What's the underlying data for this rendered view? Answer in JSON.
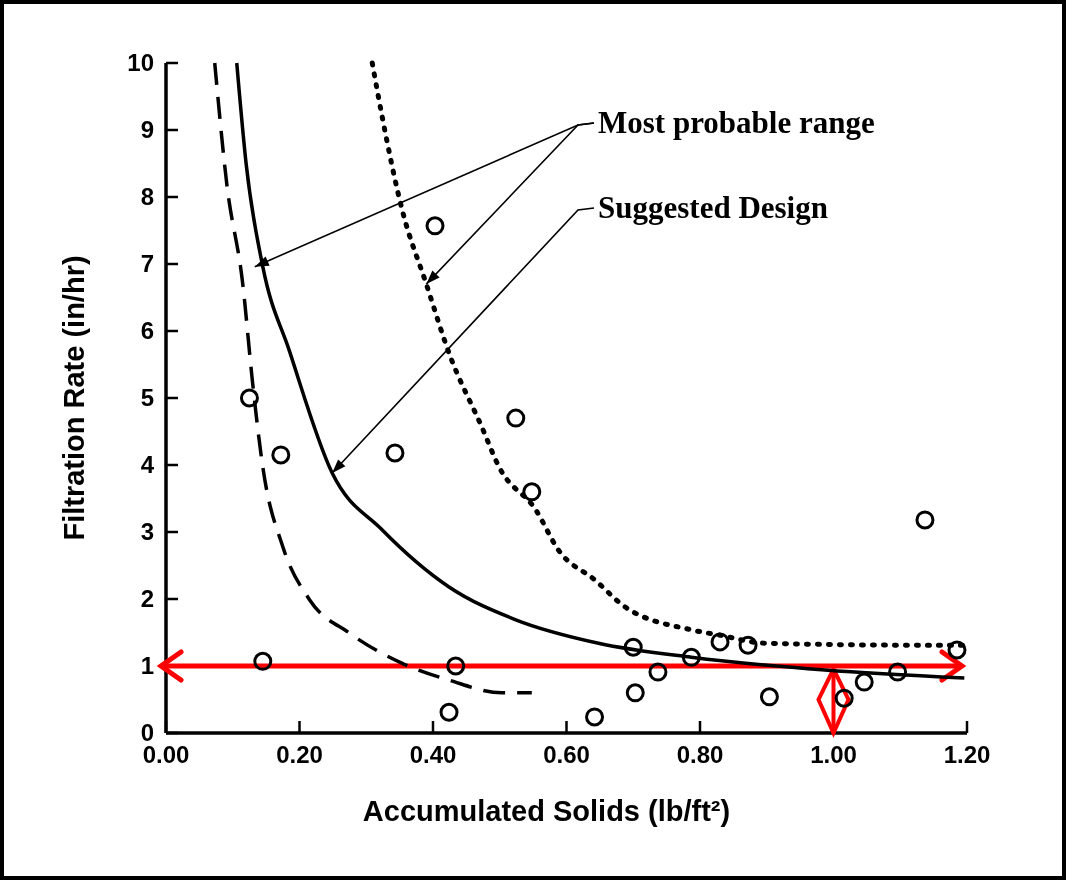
{
  "chart_data": {
    "type": "scatter",
    "xlabel": "Accumulated Solids (lb/ft²)",
    "ylabel": "Filtration Rate (in/hr)",
    "xlim": [
      0,
      1.2
    ],
    "ylim": [
      0,
      10
    ],
    "xticks": [
      {
        "value": 0,
        "label": "0.00"
      },
      {
        "value": 0.2,
        "label": "0.20"
      },
      {
        "value": 0.4,
        "label": "0.40"
      },
      {
        "value": 0.6,
        "label": "0.60"
      },
      {
        "value": 0.8,
        "label": "0.80"
      },
      {
        "value": 1,
        "label": "1.00"
      },
      {
        "value": 1.2,
        "label": "1.20"
      }
    ],
    "yticks": [
      0,
      1,
      2,
      3,
      4,
      5,
      6,
      7,
      8,
      9,
      10
    ],
    "grid": false,
    "series": [
      {
        "color": "#000000",
        "marker": "circle",
        "x": [
          0.125,
          0.172,
          0.145,
          0.343,
          0.403,
          0.434,
          0.424,
          0.524,
          0.548,
          0.642,
          0.7,
          0.703,
          0.737,
          0.787,
          0.83,
          0.872,
          0.904,
          1.016,
          1.046,
          1.096,
          1.137,
          1.185
        ],
        "values": [
          5.0,
          4.15,
          1.07,
          4.18,
          7.57,
          1.0,
          0.31,
          4.7,
          3.6,
          0.24,
          1.28,
          0.6,
          0.91,
          1.13,
          1.36,
          1.31,
          0.54,
          0.52,
          0.76,
          0.91,
          3.18,
          1.24
        ]
      },
      {
        "type": "line",
        "color": "#000000",
        "line_style": "dashed",
        "marker": "none",
        "x": [
          0.073,
          0.091,
          0.115,
          0.13,
          0.145,
          0.175,
          0.215,
          0.275,
          0.354,
          0.424,
          0.503,
          0.548
        ],
        "values": [
          10,
          8.2,
          6.7,
          5.2,
          3.97,
          2.78,
          1.99,
          1.49,
          1.04,
          0.79,
          0.6,
          0.6
        ]
      },
      {
        "type": "line",
        "color": "#000000",
        "line_style": "solid",
        "marker": "none",
        "x": [
          0.106,
          0.12,
          0.145,
          0.185,
          0.249,
          0.324,
          0.424,
          0.524,
          0.648,
          0.787,
          0.987,
          1.196
        ],
        "values": [
          10,
          8.5,
          6.96,
          5.7,
          3.88,
          3.03,
          2.18,
          1.69,
          1.34,
          1.13,
          0.94,
          0.82
        ]
      },
      {
        "type": "line",
        "color": "#000000",
        "line_style": "dotted",
        "marker": "none",
        "x": [
          0.309,
          0.324,
          0.354,
          0.39,
          0.424,
          0.473,
          0.499,
          0.554,
          0.588,
          0.643,
          0.688,
          0.787,
          0.83,
          0.897,
          1.136,
          1.2
        ],
        "values": [
          10,
          9.19,
          7.8,
          6.7,
          5.67,
          4.57,
          3.97,
          3.33,
          2.73,
          2.28,
          1.88,
          1.54,
          1.46,
          1.34,
          1.31,
          1.31
        ]
      }
    ],
    "annotations": [
      {
        "text": "Most probable range",
        "x": 0.39,
        "y": 6.7
      },
      "Suggested Design"
    ],
    "ref_lines": [
      {
        "axis": "y",
        "value": 1,
        "color": "#ff0000"
      }
    ]
  }
}
